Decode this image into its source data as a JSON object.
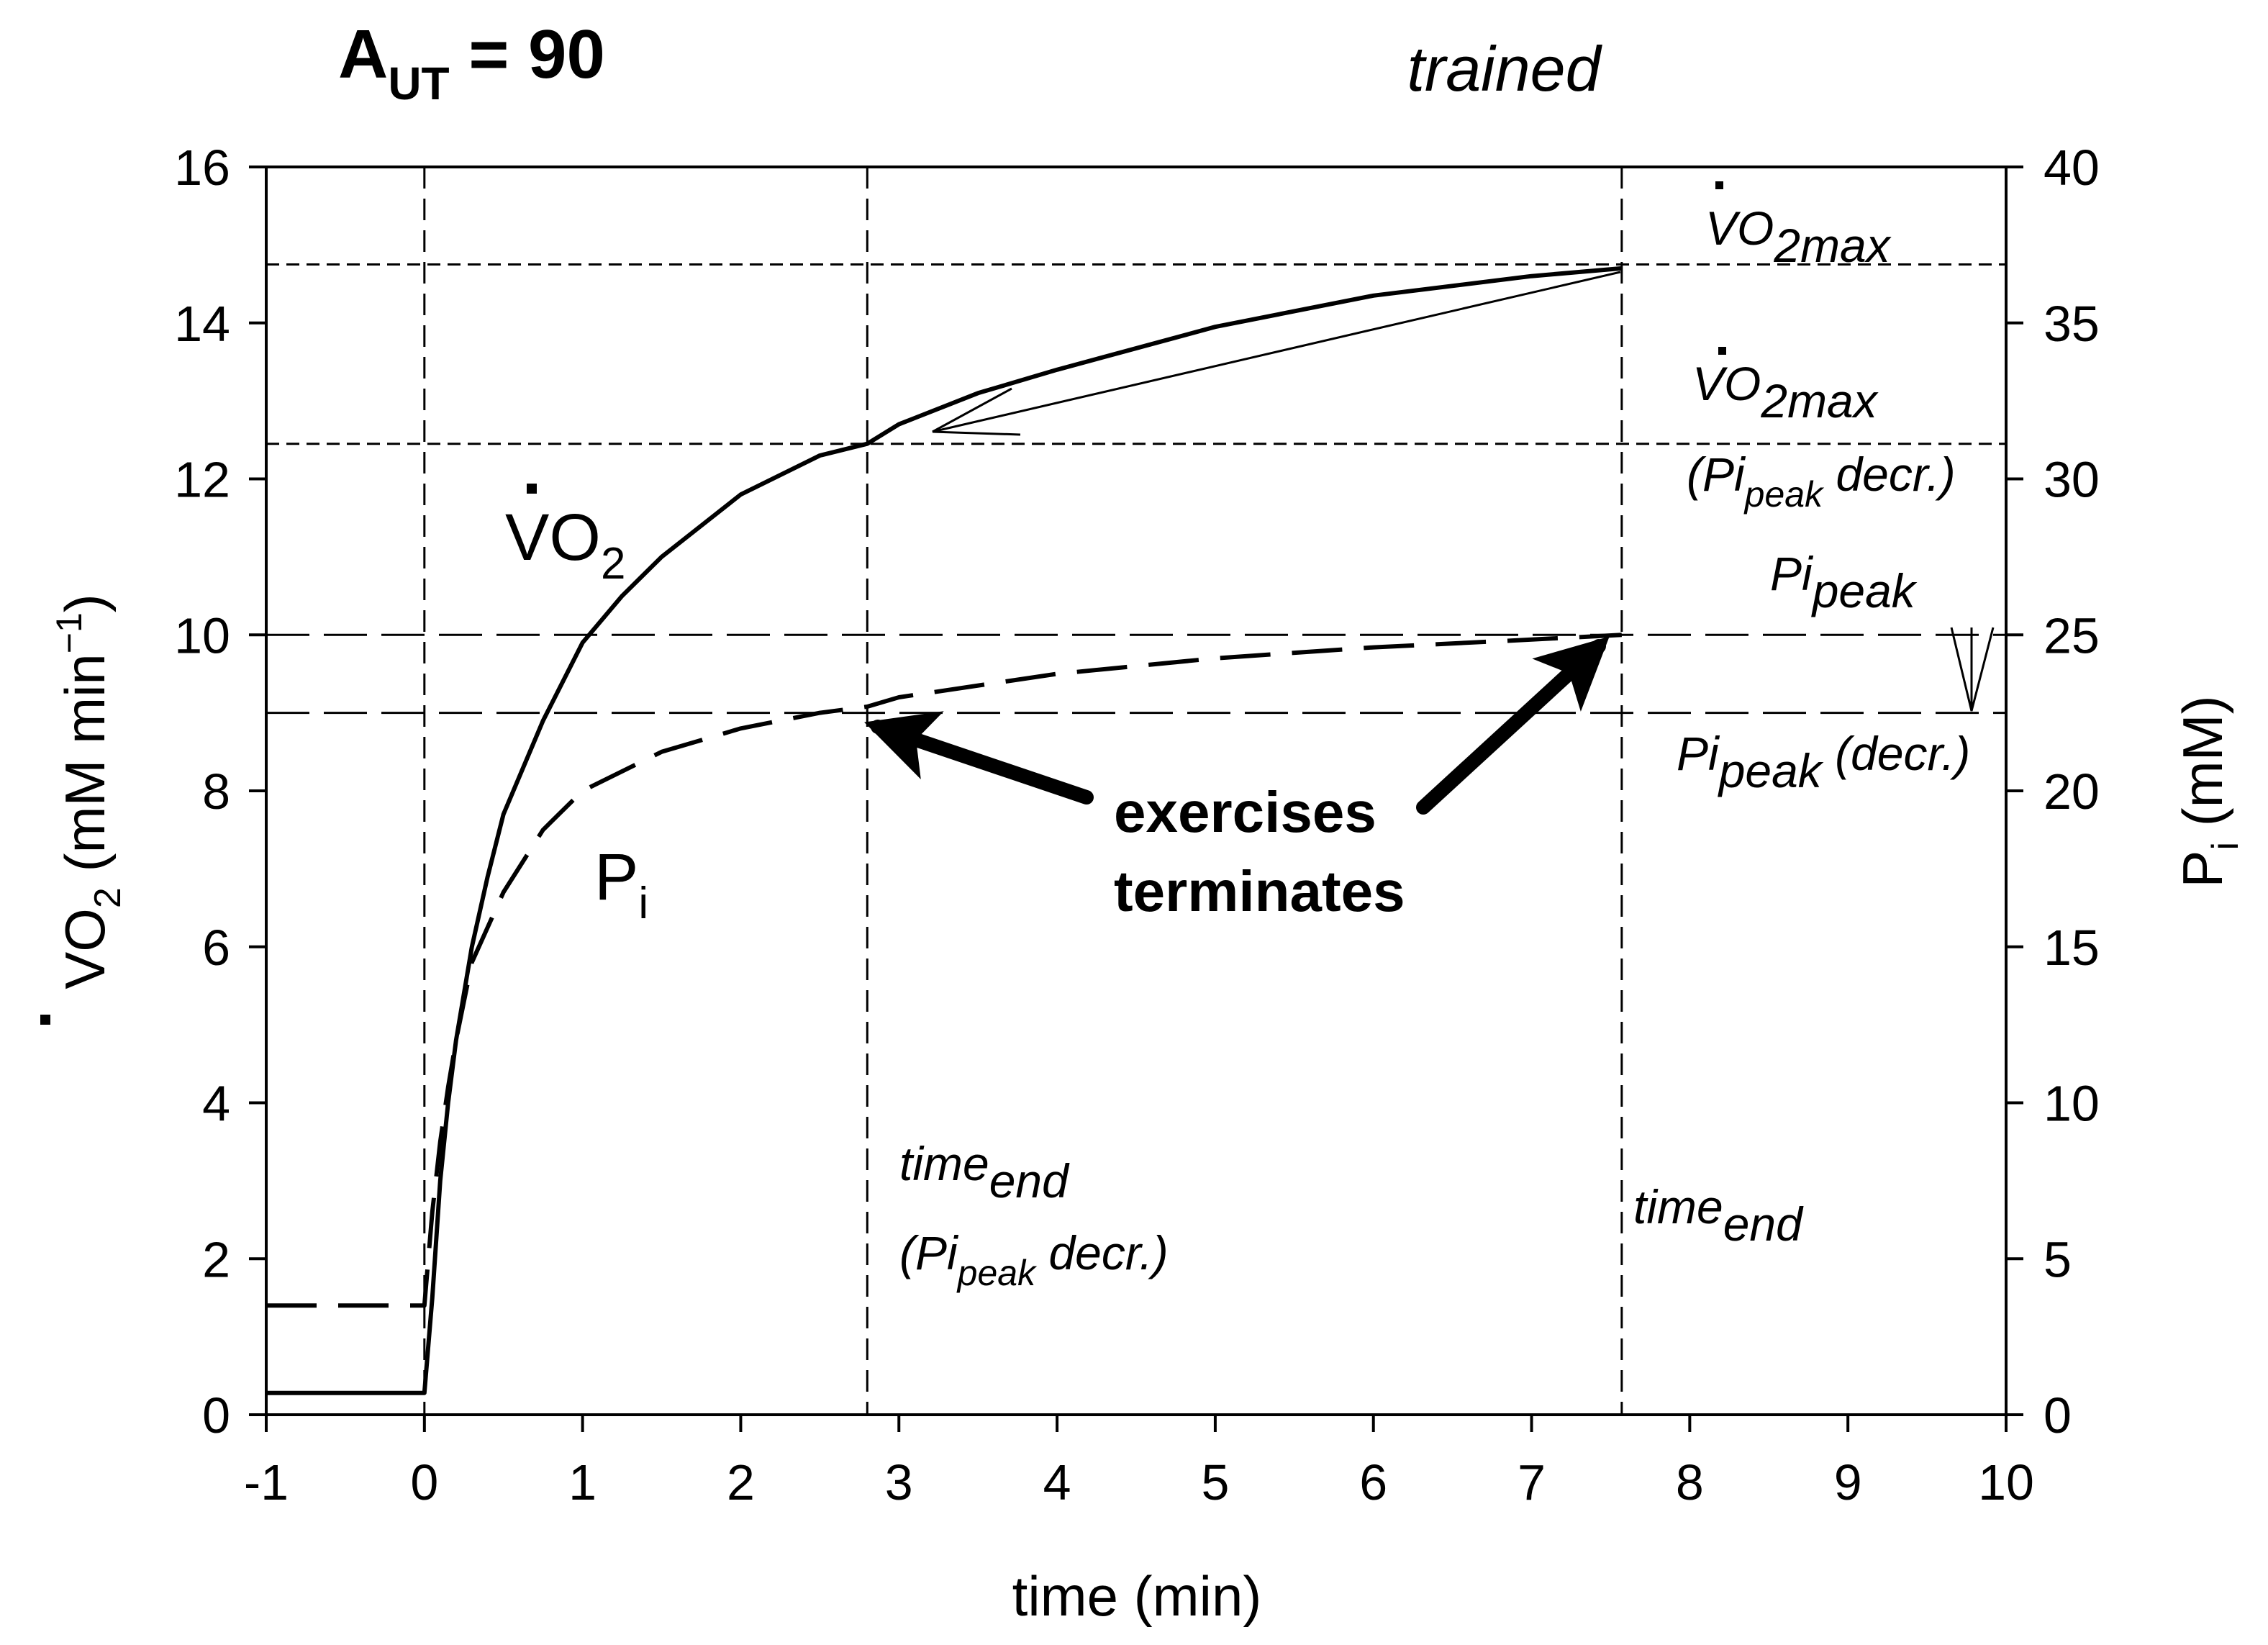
{
  "chart_data": {
    "type": "line",
    "title": "A",
    "title_subscript": "UT",
    "title_suffix": " = 90",
    "subtitle": "trained",
    "xlabel": "time (min)",
    "ylabel_left": {
      "prefix": "V",
      "sub": "2",
      "mid": "O",
      "rest": " (mM min",
      "sup": "−1",
      "end": ")"
    },
    "ylabel_right": {
      "main": "P",
      "sub": "i",
      "rest": " (mM)"
    },
    "xlim": [
      -1,
      10
    ],
    "ylim_left": [
      0,
      16
    ],
    "ylim_right": [
      0,
      40
    ],
    "x_ticks": [
      -1,
      0,
      1,
      2,
      3,
      4,
      5,
      6,
      7,
      8,
      9,
      10
    ],
    "y_left_ticks": [
      0,
      2,
      4,
      6,
      8,
      10,
      12,
      14,
      16
    ],
    "y_right_ticks": [
      0,
      5,
      10,
      15,
      20,
      25,
      30,
      35,
      40
    ],
    "series": [
      {
        "name": "VO2",
        "axis": "left",
        "style": "solid",
        "points": [
          [
            -1,
            0.28
          ],
          [
            0,
            0.28
          ],
          [
            0.05,
            1.5
          ],
          [
            0.1,
            3.0
          ],
          [
            0.15,
            4.0
          ],
          [
            0.2,
            4.8
          ],
          [
            0.3,
            6.0
          ],
          [
            0.4,
            6.9
          ],
          [
            0.5,
            7.7
          ],
          [
            0.75,
            8.9
          ],
          [
            1.0,
            9.9
          ],
          [
            1.25,
            10.5
          ],
          [
            1.5,
            11.0
          ],
          [
            2.0,
            11.8
          ],
          [
            2.5,
            12.3
          ],
          [
            2.8,
            12.45
          ],
          [
            3.0,
            12.7
          ],
          [
            3.5,
            13.1
          ],
          [
            4.0,
            13.4
          ],
          [
            5.0,
            13.95
          ],
          [
            6.0,
            14.35
          ],
          [
            7.0,
            14.6
          ],
          [
            7.57,
            14.7
          ]
        ]
      },
      {
        "name": "Pi",
        "axis": "right",
        "style": "dashed",
        "points": [
          [
            -1,
            3.5
          ],
          [
            0,
            3.5
          ],
          [
            0.05,
            6.5
          ],
          [
            0.1,
            8.75
          ],
          [
            0.15,
            10.5
          ],
          [
            0.2,
            12.0
          ],
          [
            0.3,
            14.5
          ],
          [
            0.5,
            16.75
          ],
          [
            0.75,
            18.75
          ],
          [
            1.0,
            20.0
          ],
          [
            1.5,
            21.25
          ],
          [
            2.0,
            22.0
          ],
          [
            2.5,
            22.5
          ],
          [
            2.8,
            22.7
          ],
          [
            3.0,
            23.0
          ],
          [
            4.0,
            23.75
          ],
          [
            5.0,
            24.25
          ],
          [
            6.0,
            24.6
          ],
          [
            7.0,
            24.85
          ],
          [
            7.57,
            25.0
          ]
        ]
      }
    ],
    "reference_lines": {
      "vertical_x": [
        0,
        2.8,
        7.57
      ],
      "horizontal_left_y": [
        14.75,
        12.45,
        10.0,
        9.0
      ]
    },
    "curve_labels": {
      "vo2": {
        "main": "V",
        "mid": "O",
        "sub": "2"
      },
      "pi": {
        "main": "P",
        "sub": "i"
      }
    },
    "annotations": {
      "vo2max": {
        "main": "V",
        "mid": "O",
        "sub": "2max"
      },
      "vo2max_decr": {
        "main": "V",
        "mid": "O",
        "sub": "2max",
        "line2_open": "(Pi",
        "line2_sub": "peak",
        "line2_close": " decr.)"
      },
      "pi_peak": {
        "main": "Pi",
        "sub": "peak"
      },
      "pi_peak_decr": {
        "main": "Pi",
        "sub": "peak",
        "rest": " (decr.)"
      },
      "time_end_decr": {
        "main": "time",
        "sub": "end",
        "line2_open": "(Pi",
        "line2_sub": "peak",
        "line2_close": " decr.)"
      },
      "time_end": {
        "main": "time",
        "sub": "end"
      },
      "exercise_note": {
        "line1": "exercises",
        "line2": "terminates"
      }
    }
  }
}
